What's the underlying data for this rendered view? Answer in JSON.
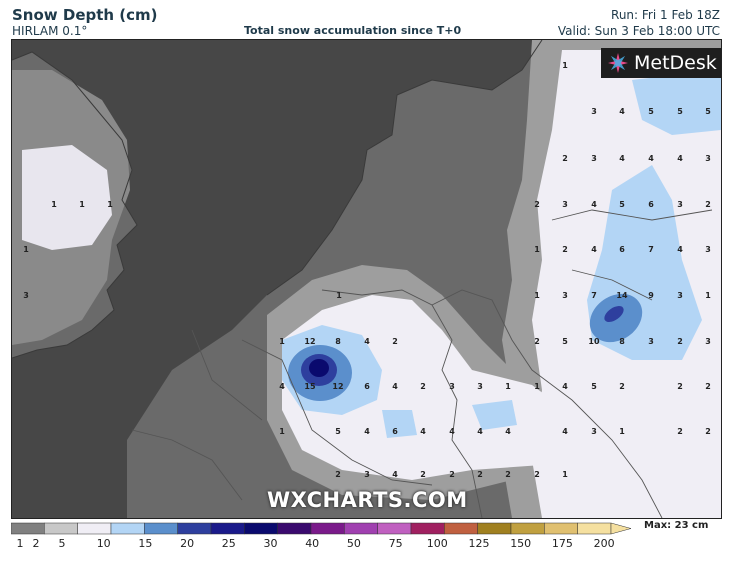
{
  "header": {
    "title": "Snow Depth (cm)",
    "model": "HIRLAM 0.1°",
    "subtitle": "Total snow accumulation since T+0",
    "run": "Run: Fri 1 Feb 18Z",
    "valid": "Valid: Sun 3 Feb 18:00 UTC"
  },
  "logo": {
    "text": "MetDesk",
    "icon": "metdesk-star-icon"
  },
  "watermark": "WXCHARTS.COM",
  "legend": {
    "ticks": [
      "1",
      "2",
      "5",
      "10",
      "15",
      "20",
      "25",
      "30",
      "40",
      "50",
      "75",
      "100",
      "125",
      "150",
      "175",
      "200"
    ],
    "colors": [
      "#808080",
      "#c8c8c8",
      "#f0eef5",
      "#b3d5f5",
      "#5b8fcc",
      "#2e3f9e",
      "#1a1a8a",
      "#0a0a6e",
      "#3a0a6e",
      "#7a1a8a",
      "#a040b0",
      "#c060c0",
      "#a02060",
      "#c06040",
      "#a08020",
      "#c0a040",
      "#e0c070",
      "#f5e0a0"
    ],
    "max_label": "Max: 23 cm"
  },
  "grid_values": {
    "uk": [
      "1",
      "1",
      "1",
      "1",
      "3"
    ],
    "west_cluster": [
      "1",
      "12",
      "8",
      "4",
      "2",
      "4",
      "15",
      "12",
      "6",
      "4",
      "1",
      "5",
      "4",
      "2",
      "3",
      "4",
      "1"
    ],
    "center": [
      "6",
      "4",
      "2",
      "3",
      "3",
      "1",
      "1",
      "4",
      "5",
      "2",
      "4",
      "4",
      "4",
      "4",
      "3",
      "1",
      "2",
      "2"
    ],
    "east_top": [
      "1",
      "3",
      "4",
      "5",
      "5",
      "5",
      "2",
      "3",
      "4",
      "4",
      "4",
      "3",
      "2",
      "3",
      "4",
      "5",
      "6",
      "3",
      "2"
    ],
    "east_mid": [
      "1",
      "2",
      "4",
      "6",
      "7",
      "4",
      "3",
      "1",
      "3",
      "7",
      "14",
      "9",
      "3",
      "1",
      "2",
      "5",
      "10",
      "8",
      "3",
      "2",
      "3"
    ],
    "east_low": [
      "2",
      "2",
      "2",
      "2",
      "1",
      "2",
      "2",
      "2"
    ]
  }
}
